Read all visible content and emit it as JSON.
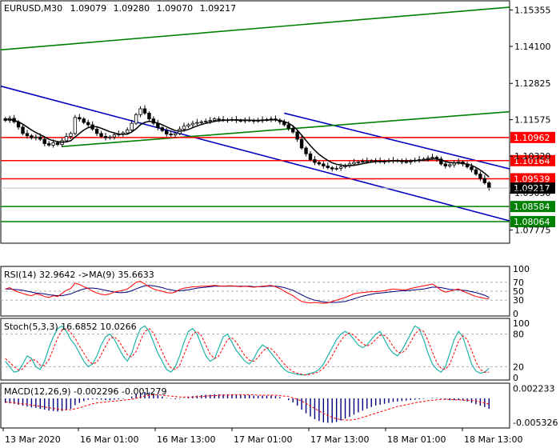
{
  "header": {
    "symbol_tf": "EURUSD,M30",
    "ohlc": [
      "1.09079",
      "1.09280",
      "1.09070",
      "1.09217"
    ]
  },
  "colors": {
    "up_candle": "#000000",
    "down_candle": "#000000",
    "channel_blue": "#0000c0",
    "channel_green": "#008000",
    "level_red": "#ff0000",
    "level_green": "#008000",
    "ma_line": "#000000",
    "rsi_line": "#ff0000",
    "rsi_ma": "#000080",
    "stoch_main": "#20b2aa",
    "stoch_signal": "#ff0000",
    "macd_hist": "#000080",
    "macd_signal": "#ff0000",
    "price_label": "#000000"
  },
  "chart_data": [
    {
      "type": "candlestick",
      "price_axis_ticks": [
        "1.15355",
        "1.14100",
        "1.12825",
        "1.11575",
        "1.10320",
        "1.09050",
        "1.07775"
      ],
      "ylim": [
        1.0732,
        1.1567
      ],
      "levels": [
        {
          "label": "1.10962",
          "value": 1.10962,
          "color": "red"
        },
        {
          "label": "1.10164",
          "value": 1.10164,
          "color": "red"
        },
        {
          "label": "1.09539",
          "value": 1.09539,
          "color": "red"
        },
        {
          "label": "1.08584",
          "value": 1.08584,
          "color": "green"
        },
        {
          "label": "1.08064",
          "value": 1.08064,
          "color": "green"
        }
      ],
      "last_price_label": "1.09217",
      "last_price": 1.09217,
      "trendlines": [
        {
          "color": "blue",
          "x1": 0,
          "y1": 1.1273,
          "x2": 1,
          "y2": 1.0809
        },
        {
          "color": "blue",
          "x1": 0.557,
          "y1": 1.118,
          "x2": 1,
          "y2": 1.0988
        },
        {
          "color": "green",
          "x1": 0,
          "y1": 1.1398,
          "x2": 1,
          "y2": 1.1545
        },
        {
          "color": "green",
          "x1": 0.12,
          "y1": 1.1065,
          "x2": 1,
          "y2": 1.1185
        }
      ],
      "closes": [
        1.1155,
        1.1162,
        1.115,
        1.1132,
        1.111,
        1.1102,
        1.1095,
        1.1098,
        1.109,
        1.1075,
        1.107,
        1.1078,
        1.1072,
        1.1085,
        1.11,
        1.111,
        1.1165,
        1.116,
        1.1148,
        1.114,
        1.1125,
        1.111,
        1.11,
        1.1095,
        1.1098,
        1.1105,
        1.1108,
        1.1112,
        1.1122,
        1.1145,
        1.1175,
        1.1195,
        1.118,
        1.116,
        1.1145,
        1.113,
        1.112,
        1.1108,
        1.1105,
        1.111,
        1.1125,
        1.1135,
        1.114,
        1.1145,
        1.1148,
        1.115,
        1.1152,
        1.1155,
        1.116,
        1.1158,
        1.1156,
        1.1157,
        1.1158,
        1.1155,
        1.1154,
        1.1156,
        1.1155,
        1.1153,
        1.1155,
        1.1157,
        1.1158,
        1.116,
        1.1156,
        1.115,
        1.114,
        1.1128,
        1.1115,
        1.109,
        1.106,
        1.104,
        1.102,
        1.101,
        1.1005,
        1.0998,
        1.0992,
        1.0988,
        1.099,
        1.0995,
        1.1,
        1.1005,
        1.101,
        1.1012,
        1.1014,
        1.1015,
        1.1016,
        1.1015,
        1.1013,
        1.1014,
        1.1016,
        1.1017,
        1.1015,
        1.1013,
        1.1012,
        1.1015,
        1.1018,
        1.102,
        1.1022,
        1.1025,
        1.1028,
        1.1022,
        1.1005,
        1.0998,
        1.1002,
        1.1008,
        1.1012,
        1.1005,
        1.0995,
        1.0985,
        1.097,
        1.0955,
        1.094,
        1.0922
      ],
      "ma_values": [
        1.116,
        1.1158,
        1.1155,
        1.115,
        1.1142,
        1.1132,
        1.1122,
        1.1113,
        1.1106,
        1.1098,
        1.109,
        1.1085,
        1.1082,
        1.108,
        1.1081,
        1.1085,
        1.1098,
        1.111,
        1.1122,
        1.113,
        1.1134,
        1.1133,
        1.1128,
        1.1122,
        1.1116,
        1.1112,
        1.1108,
        1.1107,
        1.1108,
        1.1115,
        1.1126,
        1.114,
        1.1148,
        1.1152,
        1.115,
        1.1146,
        1.114,
        1.1133,
        1.1126,
        1.112,
        1.1118,
        1.112,
        1.1124,
        1.113,
        1.1136,
        1.1141,
        1.1145,
        1.1148,
        1.1152,
        1.1154,
        1.1155,
        1.1156,
        1.1157,
        1.1157,
        1.1156,
        1.1156,
        1.1156,
        1.1155,
        1.1155,
        1.1155,
        1.1156,
        1.1157,
        1.1157,
        1.1155,
        1.1151,
        1.1145,
        1.1136,
        1.1122,
        1.1104,
        1.1086,
        1.1068,
        1.1052,
        1.1038,
        1.1027,
        1.1017,
        1.1009,
        1.1004,
        1.1001,
        1.0999,
        1.0999,
        1.1,
        1.1003,
        1.1006,
        1.1009,
        1.1011,
        1.1013,
        1.1014,
        1.1014,
        1.1015,
        1.1015,
        1.1015,
        1.1015,
        1.1015,
        1.1015,
        1.1016,
        1.1017,
        1.1018,
        1.102,
        1.1022,
        1.1022,
        1.1018,
        1.1013,
        1.101,
        1.1009,
        1.1008,
        1.1007,
        1.1004,
        1.1,
        1.0993,
        1.0984,
        1.0973,
        1.096
      ]
    },
    {
      "type": "line",
      "label": "RSI(14) 32.9642 ->MA(9) 35.6633",
      "levels_ticks": [
        "100",
        "70",
        "50",
        "30",
        "0"
      ],
      "ylim": [
        0,
        100
      ],
      "rsi": [
        55,
        58,
        52,
        48,
        45,
        42,
        40,
        44,
        42,
        38,
        36,
        40,
        38,
        45,
        52,
        56,
        68,
        65,
        60,
        56,
        50,
        46,
        43,
        42,
        44,
        48,
        50,
        52,
        55,
        62,
        70,
        72,
        66,
        60,
        55,
        52,
        50,
        47,
        46,
        48,
        54,
        57,
        58,
        60,
        60,
        61,
        61,
        62,
        63,
        62,
        61,
        62,
        62,
        61,
        60,
        61,
        60,
        59,
        60,
        61,
        62,
        63,
        60,
        56,
        50,
        45,
        40,
        33,
        27,
        25,
        24,
        25,
        24,
        23,
        24,
        27,
        30,
        33,
        36,
        40,
        44,
        46,
        47,
        48,
        49,
        49,
        50,
        51,
        53,
        55,
        54,
        53,
        53,
        56,
        58,
        60,
        62,
        64,
        66,
        60,
        52,
        48,
        50,
        53,
        55,
        50,
        46,
        42,
        38,
        36,
        34,
        33
      ],
      "rsi_ma": [
        55,
        55,
        54,
        53,
        52,
        50,
        48,
        46,
        45,
        44,
        42,
        41,
        40,
        40,
        42,
        44,
        48,
        52,
        55,
        57,
        57,
        56,
        54,
        52,
        50,
        48,
        47,
        47,
        48,
        51,
        55,
        59,
        62,
        63,
        62,
        60,
        58,
        55,
        53,
        51,
        51,
        52,
        53,
        55,
        57,
        58,
        59,
        60,
        61,
        61,
        61,
        61,
        61,
        61,
        61,
        61,
        61,
        60,
        60,
        60,
        61,
        61,
        61,
        60,
        58,
        55,
        52,
        47,
        42,
        37,
        33,
        30,
        28,
        26,
        25,
        25,
        25,
        26,
        27,
        30,
        33,
        36,
        39,
        41,
        43,
        45,
        46,
        47,
        48,
        49,
        50,
        51,
        51,
        52,
        53,
        54,
        55,
        57,
        59,
        59,
        58,
        56,
        54,
        53,
        53,
        52,
        51,
        49,
        47,
        44,
        41,
        36
      ]
    },
    {
      "type": "line",
      "label": "Stoch(5,3,3) 16.6852 10.0266",
      "levels_ticks": [
        "100",
        "80",
        "20",
        "0"
      ],
      "ylim": [
        0,
        100
      ],
      "main": [
        30,
        20,
        10,
        12,
        25,
        40,
        35,
        20,
        15,
        30,
        55,
        75,
        90,
        95,
        85,
        70,
        60,
        45,
        30,
        20,
        25,
        40,
        60,
        75,
        80,
        70,
        55,
        40,
        30,
        45,
        70,
        90,
        95,
        85,
        65,
        45,
        30,
        15,
        10,
        20,
        40,
        65,
        85,
        90,
        80,
        60,
        40,
        30,
        35,
        55,
        75,
        80,
        65,
        50,
        40,
        30,
        25,
        35,
        50,
        60,
        55,
        45,
        35,
        25,
        15,
        10,
        8,
        6,
        5,
        5,
        8,
        10,
        15,
        25,
        40,
        55,
        70,
        80,
        85,
        80,
        70,
        60,
        55,
        60,
        70,
        80,
        85,
        70,
        55,
        45,
        40,
        50,
        65,
        80,
        95,
        90,
        70,
        45,
        25,
        15,
        10,
        20,
        45,
        70,
        85,
        75,
        50,
        25,
        12,
        8,
        10,
        17
      ],
      "signal": [
        35,
        28,
        20,
        14,
        16,
        26,
        33,
        32,
        23,
        22,
        33,
        53,
        73,
        87,
        90,
        83,
        72,
        58,
        45,
        32,
        25,
        28,
        42,
        58,
        72,
        75,
        68,
        55,
        42,
        38,
        48,
        68,
        85,
        90,
        82,
        65,
        47,
        30,
        18,
        15,
        23,
        42,
        63,
        80,
        85,
        77,
        60,
        43,
        35,
        40,
        55,
        70,
        73,
        65,
        52,
        40,
        32,
        30,
        37,
        48,
        55,
        53,
        45,
        35,
        25,
        17,
        11,
        8,
        6,
        5,
        6,
        8,
        11,
        17,
        27,
        40,
        55,
        68,
        78,
        82,
        78,
        70,
        62,
        58,
        62,
        70,
        78,
        78,
        70,
        57,
        47,
        45,
        52,
        65,
        80,
        88,
        85,
        68,
        47,
        28,
        17,
        15,
        25,
        45,
        67,
        77,
        70,
        50,
        29,
        15,
        10,
        10
      ]
    },
    {
      "type": "bar",
      "label": "MACD(12,26,9) -0.002296 -0.001279",
      "levels_ticks": [
        "0.002233",
        "-0.005326"
      ],
      "ylim": [
        -0.0062,
        0.003
      ],
      "hist": [
        -0.001,
        -0.0011,
        -0.0012,
        -0.0014,
        -0.0016,
        -0.0018,
        -0.002,
        -0.0021,
        -0.0023,
        -0.0025,
        -0.0027,
        -0.0028,
        -0.0029,
        -0.0028,
        -0.0026,
        -0.0023,
        -0.0015,
        -0.001,
        -0.0006,
        -0.0003,
        -0.0002,
        -0.0002,
        -0.0003,
        -0.0004,
        -0.0004,
        -0.0003,
        -0.0002,
        -0.0001,
        0.0,
        0.0004,
        0.0009,
        0.0013,
        0.0014,
        0.0013,
        0.001,
        0.0007,
        0.0004,
        0.0001,
        -0.0001,
        -0.0002,
        -0.0001,
        0.0001,
        0.0003,
        0.0005,
        0.0006,
        0.0007,
        0.0008,
        0.0008,
        0.0009,
        0.0009,
        0.0009,
        0.0009,
        0.0009,
        0.0008,
        0.0008,
        0.0007,
        0.0007,
        0.0006,
        0.0006,
        0.0006,
        0.0006,
        0.0006,
        0.0005,
        0.0003,
        0.0,
        -0.0004,
        -0.0009,
        -0.0016,
        -0.0025,
        -0.0033,
        -0.004,
        -0.0046,
        -0.005,
        -0.0053,
        -0.0054,
        -0.0054,
        -0.0052,
        -0.0049,
        -0.0045,
        -0.0041,
        -0.0036,
        -0.0031,
        -0.0027,
        -0.0023,
        -0.0019,
        -0.0016,
        -0.0014,
        -0.0012,
        -0.001,
        -0.0008,
        -0.0007,
        -0.0006,
        -0.0005,
        -0.0004,
        -0.0003,
        -0.0002,
        -0.0001,
        0.0,
        0.0001,
        0.0001,
        -0.0001,
        -0.0003,
        -0.0004,
        -0.0004,
        -0.0004,
        -0.0005,
        -0.0007,
        -0.001,
        -0.0013,
        -0.0016,
        -0.0019,
        -0.0023
      ],
      "signal": [
        -0.0008,
        -0.0009,
        -0.001,
        -0.0011,
        -0.0012,
        -0.0013,
        -0.0015,
        -0.0016,
        -0.0018,
        -0.0019,
        -0.0021,
        -0.0022,
        -0.0024,
        -0.0025,
        -0.0025,
        -0.0025,
        -0.0023,
        -0.0021,
        -0.0018,
        -0.0015,
        -0.0012,
        -0.001,
        -0.0009,
        -0.0008,
        -0.0007,
        -0.0006,
        -0.0005,
        -0.0004,
        -0.0003,
        -0.0002,
        0.0,
        0.0003,
        0.0005,
        0.0007,
        0.0008,
        0.0008,
        0.0007,
        0.0006,
        0.0005,
        0.0004,
        0.0003,
        0.0003,
        0.0003,
        0.0003,
        0.0004,
        0.0004,
        0.0005,
        0.0006,
        0.0006,
        0.0007,
        0.0007,
        0.0007,
        0.0008,
        0.0008,
        0.0008,
        0.0008,
        0.0008,
        0.0008,
        0.0007,
        0.0007,
        0.0007,
        0.0007,
        0.0007,
        0.0006,
        0.0005,
        0.0004,
        0.0001,
        -0.0002,
        -0.0006,
        -0.0011,
        -0.0017,
        -0.0022,
        -0.0028,
        -0.0033,
        -0.0038,
        -0.0042,
        -0.0045,
        -0.0047,
        -0.0048,
        -0.0048,
        -0.0047,
        -0.0045,
        -0.0042,
        -0.0039,
        -0.0036,
        -0.0033,
        -0.003,
        -0.0027,
        -0.0024,
        -0.0021,
        -0.0018,
        -0.0016,
        -0.0014,
        -0.0012,
        -0.001,
        -0.0008,
        -0.0007,
        -0.0005,
        -0.0004,
        -0.0003,
        -0.0002,
        -0.0002,
        -0.0002,
        -0.0003,
        -0.0003,
        -0.0004,
        -0.0004,
        -0.0005,
        -0.0006,
        -0.0008,
        -0.001,
        -0.0013
      ]
    }
  ],
  "time_axis": [
    "13 Mar 2020",
    "16 Mar 01:00",
    "16 Mar 13:00",
    "17 Mar 01:00",
    "17 Mar 13:00",
    "18 Mar 01:00",
    "18 Mar 13:00"
  ]
}
